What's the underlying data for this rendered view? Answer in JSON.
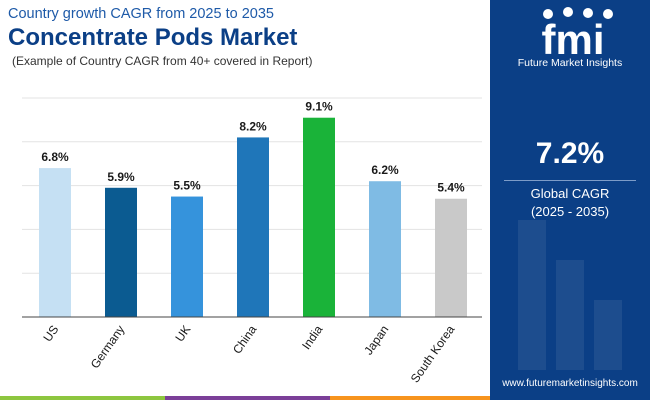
{
  "header": {
    "subtitle": "Country growth CAGR from 2025 to 2035",
    "title": "Concentrate Pods Market",
    "note": "(Example of Country CAGR from 40+ covered in Report)"
  },
  "chart_data": {
    "type": "bar",
    "title": "Concentrate Pods Market",
    "subtitle": "Country growth CAGR from 2025 to 2035",
    "xlabel": "",
    "ylabel": "",
    "categories": [
      "US",
      "Germany",
      "UK",
      "China",
      "India",
      "Japan",
      "South Korea"
    ],
    "values": [
      6.8,
      5.9,
      5.5,
      8.2,
      9.1,
      6.2,
      5.4
    ],
    "value_labels": [
      "6.8%",
      "5.9%",
      "5.5%",
      "8.2%",
      "9.1%",
      "6.2%",
      "5.4%"
    ],
    "colors": [
      "#c5e0f3",
      "#0b5b91",
      "#3593dc",
      "#1f76b9",
      "#1ab339",
      "#7fbbe4",
      "#c9c9c9"
    ],
    "ylim": [
      0,
      10
    ],
    "grid": true,
    "grid_values": [
      2,
      4,
      6,
      8,
      10
    ],
    "value_suffix": "%"
  },
  "side_panel": {
    "logo_text": "fmi",
    "logo_tagline": "Future Market Insights",
    "cagr_value": "7.2%",
    "cagr_label": "Global CAGR",
    "cagr_period": "(2025 - 2035)",
    "website": "www.futuremarketinsights.com"
  },
  "colors": {
    "brand_dark": "#0b3f86",
    "brand_blue": "#1e5aa8",
    "footer_green": "#8dc63f",
    "footer_purple": "#7b3f98",
    "footer_orange": "#f7941d"
  }
}
